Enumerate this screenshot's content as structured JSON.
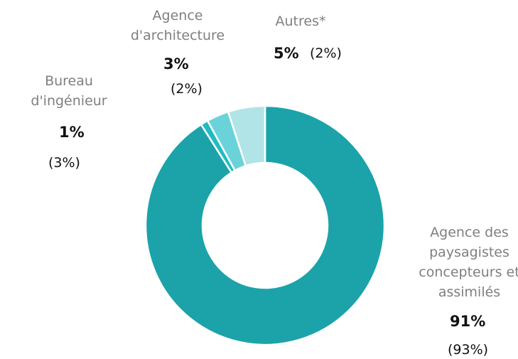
{
  "chart_data": {
    "type": "donut",
    "categories": [
      "Agence des paysagistes concepteurs et assimilés",
      "Bureau d'ingénieur",
      "Agence d'architecture",
      "Autres*"
    ],
    "values": [
      91,
      1,
      3,
      5
    ],
    "value_labels": [
      "91%",
      "1%",
      "3%",
      "5%"
    ],
    "previous_values": [
      93,
      3,
      2,
      2
    ],
    "previous_labels": [
      "(93%)",
      "(3%)",
      "(2%)",
      "(2%)"
    ],
    "colors": [
      "#1ba3a9",
      "#1fbcc4",
      "#6ad3da",
      "#b1e4e7"
    ]
  }
}
